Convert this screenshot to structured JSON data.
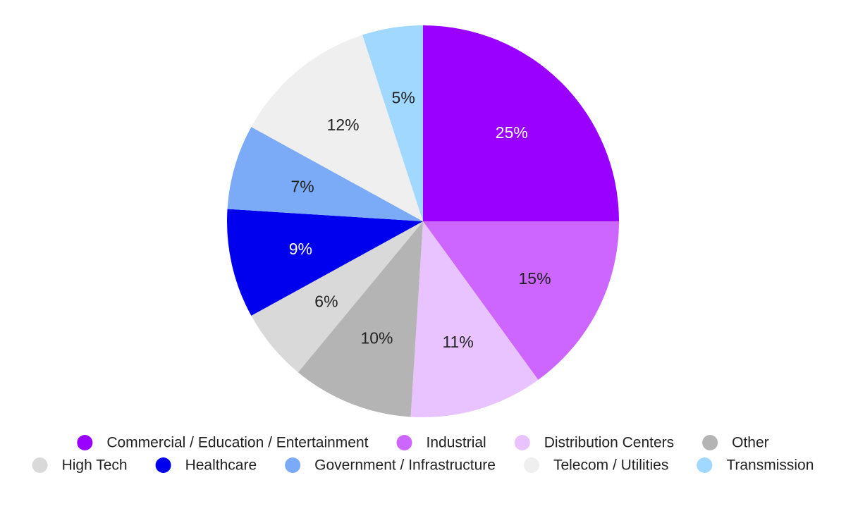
{
  "chart_data": {
    "type": "pie",
    "title": "",
    "slices": [
      {
        "label": "Commercial / Education / Entertainment",
        "value": 25,
        "display": "25%",
        "color": "#9900ff",
        "label_color": "#ffffff"
      },
      {
        "label": "Industrial",
        "value": 15,
        "display": "15%",
        "color": "#cc66ff",
        "label_color": "#222222"
      },
      {
        "label": "Distribution Centers",
        "value": 11,
        "display": "11%",
        "color": "#e8c3ff",
        "label_color": "#222222"
      },
      {
        "label": "Other",
        "value": 10,
        "display": "10%",
        "color": "#b4b4b4",
        "label_color": "#222222"
      },
      {
        "label": "High Tech",
        "value": 6,
        "display": "6%",
        "color": "#d9d9d9",
        "label_color": "#222222"
      },
      {
        "label": "Healthcare",
        "value": 9,
        "display": "9%",
        "color": "#0000ee",
        "label_color": "#ffffff"
      },
      {
        "label": "Government / Infrastructure",
        "value": 7,
        "display": "7%",
        "color": "#7baaf7",
        "label_color": "#222222"
      },
      {
        "label": "Telecom / Utilities",
        "value": 12,
        "display": "12%",
        "color": "#efefef",
        "label_color": "#222222"
      },
      {
        "label": "Transmission",
        "value": 5,
        "display": "5%",
        "color": "#a0d8ff",
        "label_color": "#222222"
      }
    ],
    "start_angle_deg": 0,
    "direction": "clockwise",
    "legend_position": "bottom"
  }
}
